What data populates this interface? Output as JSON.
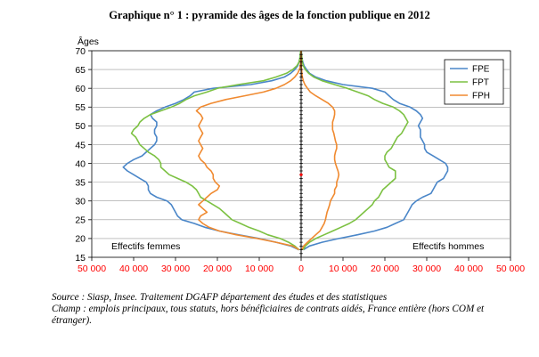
{
  "title": "Graphique n° 1 :  pyramide des âges de la fonction publique en 2012",
  "notes": {
    "source": "Source : Siasp, Insee. Traitement DGAFP département des études et des statistiques",
    "champ": "Champ : emplois principaux, tous statuts, hors bénéficiaires de contrats aidés, France entière (hors COM et étranger)."
  },
  "chart_data": {
    "type": "line",
    "title": "Graphique n° 1 :  pyramide des âges de la fonction publique en 2012",
    "ylabel": "Âges",
    "xlabel": "",
    "ylim": [
      15,
      70
    ],
    "xlim": [
      -50000,
      50000
    ],
    "yticks": [
      "15",
      "20",
      "25",
      "30",
      "35",
      "40",
      "45",
      "50",
      "55",
      "60",
      "65",
      "70"
    ],
    "xticks": [
      "50 000",
      "40 000",
      "30 000",
      "20 000",
      "10 000",
      "0",
      "10 000",
      "20 000",
      "30 000",
      "40 000",
      "50 000"
    ],
    "annotations": {
      "left": "Effectifs femmes",
      "right": "Effectifs hommes"
    },
    "legend": {
      "position": "top-right"
    },
    "grid": "horizontal",
    "colors": {
      "FPE": "#4a86c8",
      "FPT": "#7cc142",
      "FPH": "#f08a30",
      "axis_ticks": "#ff0000",
      "center_axis": "#000000"
    },
    "series": [
      {
        "name": "FPE",
        "ages": [
          17,
          18,
          19,
          20,
          21,
          22,
          23,
          24,
          25,
          26,
          27,
          28,
          29,
          30,
          31,
          32,
          33,
          34,
          35,
          36,
          37,
          38,
          39,
          40,
          41,
          42,
          43,
          44,
          45,
          46,
          47,
          48,
          49,
          50,
          51,
          52,
          53,
          54,
          55,
          56,
          57,
          58,
          59,
          60,
          61,
          62,
          63,
          64,
          65,
          66,
          67,
          68,
          69,
          70
        ],
        "women": [
          500,
          2500,
          6000,
          10000,
          15000,
          19500,
          23000,
          25500,
          28500,
          29500,
          30000,
          30500,
          31000,
          32000,
          34500,
          36000,
          36500,
          36500,
          37000,
          38500,
          40000,
          41500,
          42500,
          41500,
          40000,
          38000,
          37000,
          36000,
          35000,
          34500,
          34500,
          35000,
          35000,
          34500,
          34500,
          35500,
          36000,
          34500,
          32500,
          30000,
          28000,
          26500,
          25500,
          21000,
          12000,
          7000,
          4000,
          2500,
          1500,
          800,
          500,
          300,
          200,
          100
        ],
        "men": [
          500,
          2000,
          5000,
          9000,
          13500,
          17500,
          20500,
          22500,
          24500,
          25000,
          25500,
          26000,
          26500,
          27500,
          29000,
          31000,
          31500,
          32000,
          32500,
          34000,
          34500,
          35000,
          35000,
          34500,
          33000,
          31500,
          30000,
          29500,
          29500,
          29000,
          28500,
          28500,
          28500,
          28000,
          28500,
          29000,
          28500,
          27500,
          26000,
          23500,
          22000,
          21000,
          20000,
          17000,
          10000,
          6000,
          3500,
          2000,
          1300,
          700,
          400,
          200,
          100,
          50
        ]
      },
      {
        "name": "FPT",
        "ages": [
          17,
          18,
          19,
          20,
          21,
          22,
          23,
          24,
          25,
          26,
          27,
          28,
          29,
          30,
          31,
          32,
          33,
          34,
          35,
          36,
          37,
          38,
          39,
          40,
          41,
          42,
          43,
          44,
          45,
          46,
          47,
          48,
          49,
          50,
          51,
          52,
          53,
          54,
          55,
          56,
          57,
          58,
          59,
          60,
          61,
          62,
          63,
          64,
          65,
          66,
          67,
          68,
          69,
          70
        ],
        "women": [
          500,
          1500,
          3000,
          5000,
          8000,
          10000,
          12500,
          14500,
          16500,
          17500,
          18500,
          19500,
          21000,
          22500,
          24000,
          24500,
          25000,
          26000,
          27500,
          29500,
          31500,
          32500,
          33500,
          33500,
          34000,
          35000,
          36500,
          37500,
          38500,
          39000,
          39500,
          40500,
          40000,
          39000,
          38500,
          37500,
          36000,
          33500,
          31000,
          29000,
          27500,
          25500,
          22500,
          20000,
          15000,
          9000,
          6000,
          3500,
          2000,
          1000,
          500,
          300,
          200,
          100
        ],
        "men": [
          500,
          1000,
          2000,
          3500,
          5500,
          7500,
          9500,
          11500,
          13000,
          14000,
          15000,
          16000,
          17000,
          17500,
          18500,
          19000,
          19500,
          20500,
          21500,
          22500,
          22500,
          22500,
          21000,
          20500,
          20000,
          20000,
          20500,
          21500,
          22000,
          22500,
          23000,
          24000,
          24500,
          25000,
          25500,
          25000,
          24500,
          23500,
          22000,
          19500,
          17500,
          16000,
          13500,
          11000,
          8000,
          5000,
          3000,
          1800,
          1000,
          500,
          300,
          200,
          100,
          50
        ]
      },
      {
        "name": "FPH",
        "ages": [
          17,
          18,
          19,
          20,
          21,
          22,
          23,
          24,
          25,
          26,
          27,
          28,
          29,
          30,
          31,
          32,
          33,
          34,
          35,
          36,
          37,
          38,
          39,
          40,
          41,
          42,
          43,
          44,
          45,
          46,
          47,
          48,
          49,
          50,
          51,
          52,
          53,
          54,
          55,
          56,
          57,
          58,
          59,
          60,
          61,
          62,
          63,
          64,
          65,
          66,
          67,
          68,
          69,
          70
        ],
        "women": [
          500,
          2000,
          6000,
          10500,
          15500,
          19500,
          22000,
          23500,
          24500,
          24000,
          22500,
          23500,
          24500,
          23500,
          22500,
          21500,
          20000,
          19500,
          20500,
          21000,
          21000,
          21500,
          22500,
          23000,
          24000,
          24500,
          24000,
          23500,
          24000,
          24500,
          24000,
          23500,
          24000,
          24500,
          24000,
          23500,
          24000,
          25000,
          24000,
          21500,
          18000,
          13500,
          9000,
          6000,
          4000,
          2500,
          1500,
          800,
          400,
          200,
          100,
          50,
          30,
          20
        ],
        "men": [
          200,
          600,
          1500,
          2500,
          3500,
          4500,
          5000,
          5500,
          5800,
          6000,
          6200,
          6500,
          6800,
          7000,
          7500,
          8000,
          8000,
          8500,
          8500,
          8800,
          9000,
          8800,
          8500,
          8200,
          8000,
          8000,
          8200,
          8500,
          8500,
          8200,
          8000,
          7800,
          7500,
          7500,
          7500,
          7800,
          8000,
          8000,
          7500,
          6500,
          5000,
          3500,
          2200,
          1500,
          900,
          500,
          300,
          200,
          100,
          50,
          30,
          20,
          10,
          10
        ]
      }
    ]
  }
}
